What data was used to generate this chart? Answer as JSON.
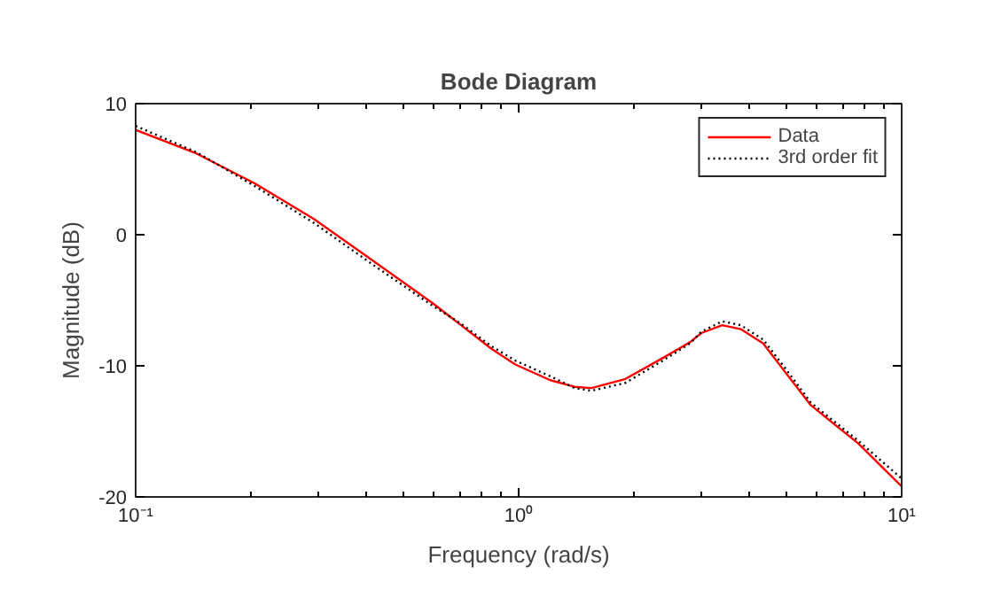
{
  "chart_data": {
    "type": "line",
    "title": "Bode Diagram",
    "xlabel": "Frequency (rad/s)",
    "ylabel": "Magnitude (dB)",
    "log": "x",
    "xlim": [
      0.1,
      10
    ],
    "ylim": [
      -20,
      10
    ],
    "xticks": [
      {
        "value": 0.1,
        "label": "10⁻¹"
      },
      {
        "value": 0.2,
        "label": null
      },
      {
        "value": 0.3,
        "label": null
      },
      {
        "value": 0.4,
        "label": null
      },
      {
        "value": 0.5,
        "label": null
      },
      {
        "value": 0.6,
        "label": null
      },
      {
        "value": 0.7,
        "label": null
      },
      {
        "value": 0.8,
        "label": null
      },
      {
        "value": 0.9,
        "label": null
      },
      {
        "value": 1,
        "label": "10⁰"
      },
      {
        "value": 2,
        "label": null
      },
      {
        "value": 3,
        "label": null
      },
      {
        "value": 4,
        "label": null
      },
      {
        "value": 5,
        "label": null
      },
      {
        "value": 6,
        "label": null
      },
      {
        "value": 7,
        "label": null
      },
      {
        "value": 8,
        "label": null
      },
      {
        "value": 9,
        "label": null
      },
      {
        "value": 10,
        "label": "10¹"
      }
    ],
    "yticks": [
      -20,
      -10,
      0,
      10
    ],
    "grid": false,
    "legend": "top right",
    "marker": "none",
    "x": [
      0.1,
      0.144,
      0.205,
      0.292,
      0.417,
      0.595,
      0.7,
      0.849,
      0.98,
      1.21,
      1.4,
      1.55,
      1.9,
      2.38,
      2.8,
      3.0,
      3.4,
      3.8,
      4.35,
      5.0,
      5.79,
      6.7,
      7.69,
      10
    ],
    "series": [
      {
        "name": "Data",
        "color": "#ff0000",
        "line_style": "solid",
        "values": [
          8.0,
          6.2,
          3.9,
          1.2,
          -2.0,
          -5.2,
          -6.8,
          -8.7,
          -9.9,
          -11.1,
          -11.6,
          -11.7,
          -11.0,
          -9.4,
          -8.2,
          -7.5,
          -6.9,
          -7.2,
          -8.3,
          -10.6,
          -13.0,
          -14.5,
          -15.9,
          -19.2
        ]
      },
      {
        "name": "3rd order fit",
        "color": "#000000",
        "line_style": "dotted",
        "values": [
          8.3,
          6.3,
          3.7,
          0.9,
          -2.3,
          -5.4,
          -6.7,
          -8.5,
          -9.6,
          -10.8,
          -11.7,
          -11.9,
          -11.3,
          -9.6,
          -8.3,
          -7.4,
          -6.6,
          -6.9,
          -8.0,
          -10.3,
          -12.8,
          -14.3,
          -15.7,
          -18.6
        ]
      }
    ]
  }
}
